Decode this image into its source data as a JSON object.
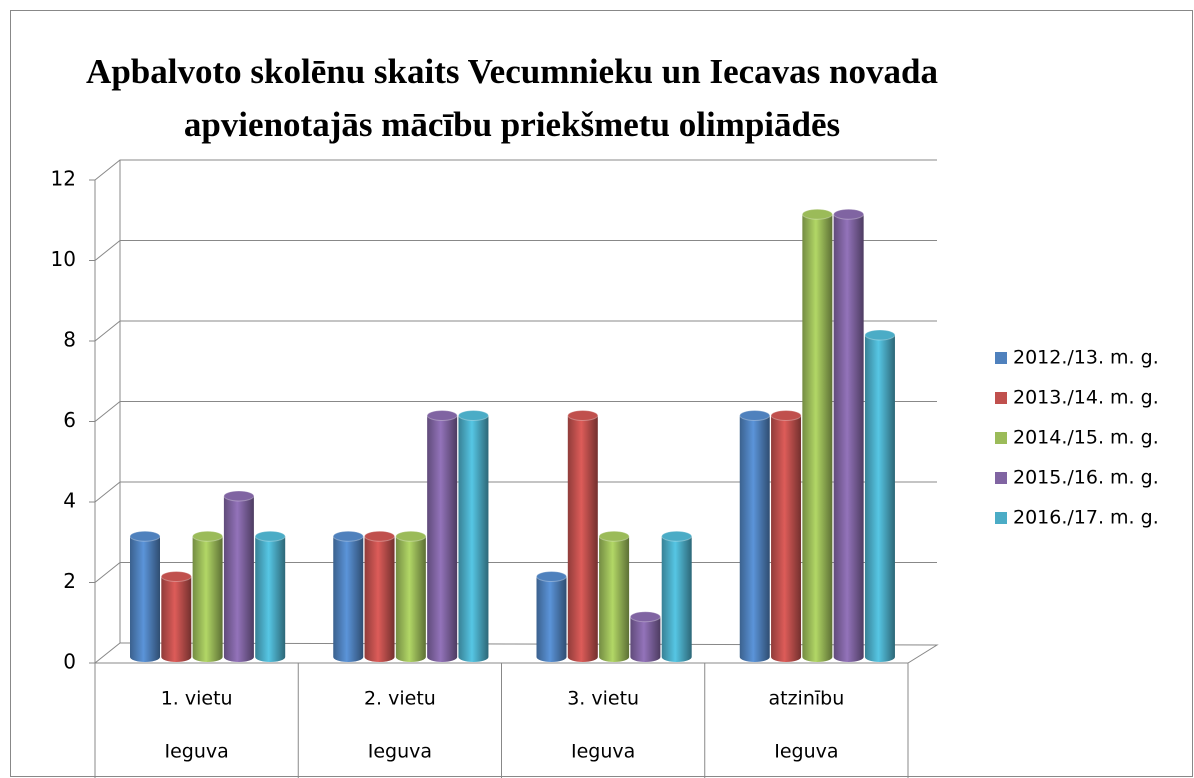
{
  "chart_data": {
    "type": "bar3d",
    "title": [
      "Apbalvoto skolēnu skaits Vecumnieku un Iecavas novada",
      "apvienotajās mācību priekšmetu olimpiādēs"
    ],
    "categories": [
      [
        "1. vietu",
        "Ieguva"
      ],
      [
        "2. vietu",
        "Ieguva"
      ],
      [
        "3. vietu",
        "Ieguva"
      ],
      [
        "atzinību",
        "Ieguva"
      ]
    ],
    "series": [
      {
        "name": "2012./13. m. g.",
        "color": "#4f81bd",
        "values": [
          3,
          3,
          2,
          6
        ]
      },
      {
        "name": "2013./14. m. g.",
        "color": "#c0504d",
        "values": [
          2,
          3,
          6,
          6
        ]
      },
      {
        "name": "2014./15. m. g.",
        "color": "#9bbb59",
        "values": [
          3,
          3,
          3,
          11
        ]
      },
      {
        "name": "2015./16. m. g.",
        "color": "#8064a2",
        "values": [
          4,
          6,
          1,
          11
        ]
      },
      {
        "name": "2016./17. m. g.",
        "color": "#4bacc6",
        "values": [
          3,
          6,
          3,
          8
        ]
      }
    ],
    "ylim": [
      0,
      12
    ],
    "yticks": [
      0,
      2,
      4,
      6,
      8,
      10,
      12
    ],
    "grid": true,
    "legend": "right"
  }
}
